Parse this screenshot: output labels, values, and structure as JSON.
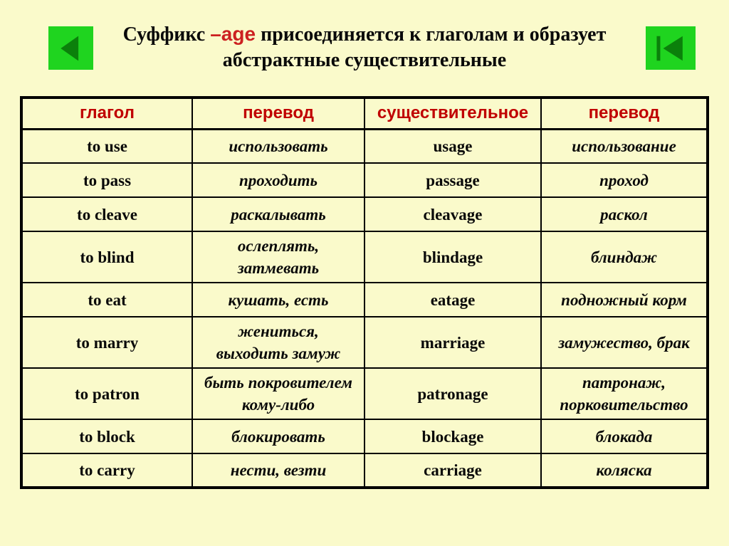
{
  "colors": {
    "background": "#FAFACB",
    "border_black": "#000000",
    "header_red": "#C00000",
    "age_red": "#CC2020",
    "button_green": "#1FD41F",
    "icon_green": "#0B800B",
    "text_black": "#0A0A0A"
  },
  "nav": {
    "back_button_icon": "previous-triangle-icon",
    "first_button_icon": "skip-to-start-icon"
  },
  "title": {
    "prefix": "Суффикс ",
    "highlight": "–age",
    "rest": " присоединяется к глаголам и образует\nабстрактные существительные"
  },
  "table": {
    "headers": [
      "глагол",
      "перевод",
      "существительное",
      "перевод"
    ],
    "rows": [
      [
        "to use",
        "использовать",
        "usage",
        "использование"
      ],
      [
        "to pass",
        "проходить",
        "passage",
        "проход"
      ],
      [
        "to cleave",
        "раскалывать",
        "cleavage",
        "раскол"
      ],
      [
        "to blind",
        "ослеплять,\nзатмевать",
        "blindage",
        "блиндаж"
      ],
      [
        "to eat",
        "кушать, есть",
        "eatage",
        "подножный корм"
      ],
      [
        "to marry",
        "жениться,\nвыходить замуж",
        "marriage",
        "замужество, брак"
      ],
      [
        "to patron",
        "быть покровителем\nкому-либо",
        "patronage",
        "патронаж,\nпорковительство"
      ],
      [
        "to block",
        "блокировать",
        "blockage",
        "блокада"
      ],
      [
        "to carry",
        "нести, везти",
        "carriage",
        "коляска"
      ]
    ]
  }
}
